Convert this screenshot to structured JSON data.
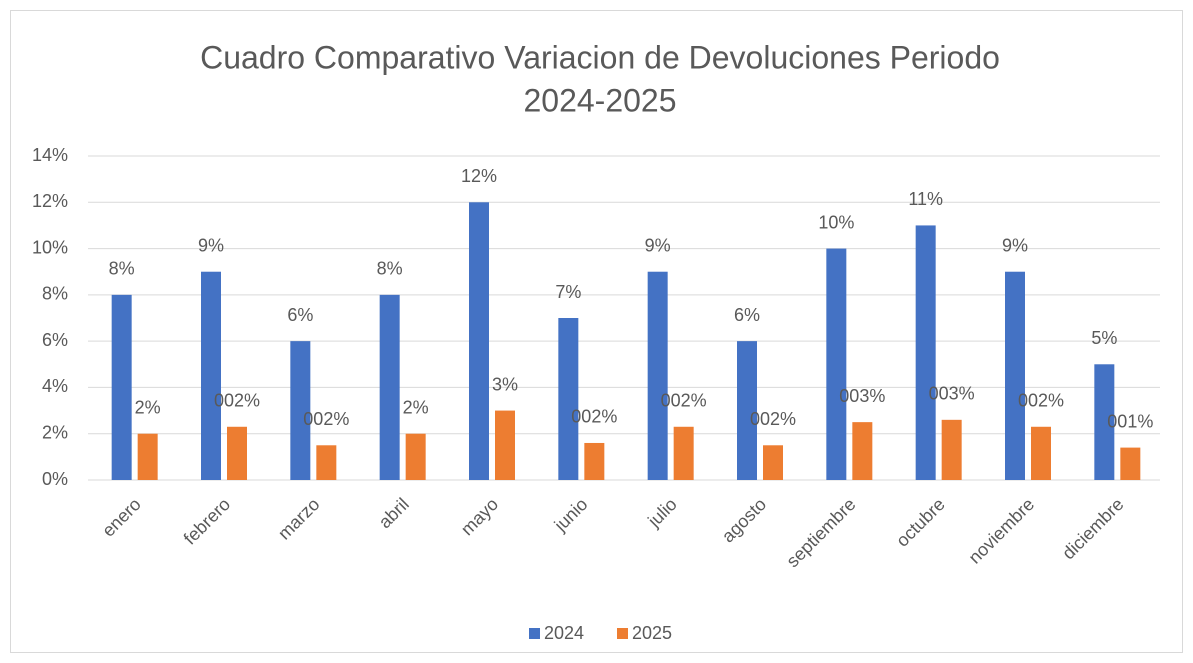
{
  "chart_data": {
    "type": "bar",
    "title": "Cuadro Comparativo Variacion de Devoluciones Periodo",
    "subtitle": "2024-2025",
    "categories": [
      "enero",
      "febrero",
      "marzo",
      "abril",
      "mayo",
      "junio",
      "julio",
      "agosto",
      "septiembre",
      "octubre",
      "noviembre",
      "diciembre"
    ],
    "series": [
      {
        "name": "2024",
        "color": "#4472c4",
        "values": [
          8,
          9,
          6,
          8,
          12,
          7,
          9,
          6,
          10,
          11,
          9,
          5
        ],
        "value_labels": [
          "8%",
          "9%",
          "6%",
          "8%",
          "12%",
          "7%",
          "9%",
          "6%",
          "10%",
          "11%",
          "9%",
          "5%"
        ]
      },
      {
        "name": "2025",
        "color": "#ed7d31",
        "values": [
          2,
          2.3,
          1.5,
          2,
          3,
          1.6,
          2.3,
          1.5,
          2.5,
          2.6,
          2.3,
          1.4
        ],
        "value_labels": [
          "2%",
          "002%",
          "002%",
          "2%",
          "3%",
          "002%",
          "002%",
          "002%",
          "003%",
          "003%",
          "002%",
          "001%"
        ]
      }
    ],
    "ylim": [
      0,
      14
    ],
    "yticks": [
      {
        "value": 0,
        "label": "0%"
      },
      {
        "value": 2,
        "label": "2%"
      },
      {
        "value": 4,
        "label": "4%"
      },
      {
        "value": 6,
        "label": "6%"
      },
      {
        "value": 8,
        "label": "8%"
      },
      {
        "value": 10,
        "label": "10%"
      },
      {
        "value": 12,
        "label": "12%"
      },
      {
        "value": 14,
        "label": "14%"
      }
    ],
    "grid": true,
    "legend": "bottom"
  }
}
